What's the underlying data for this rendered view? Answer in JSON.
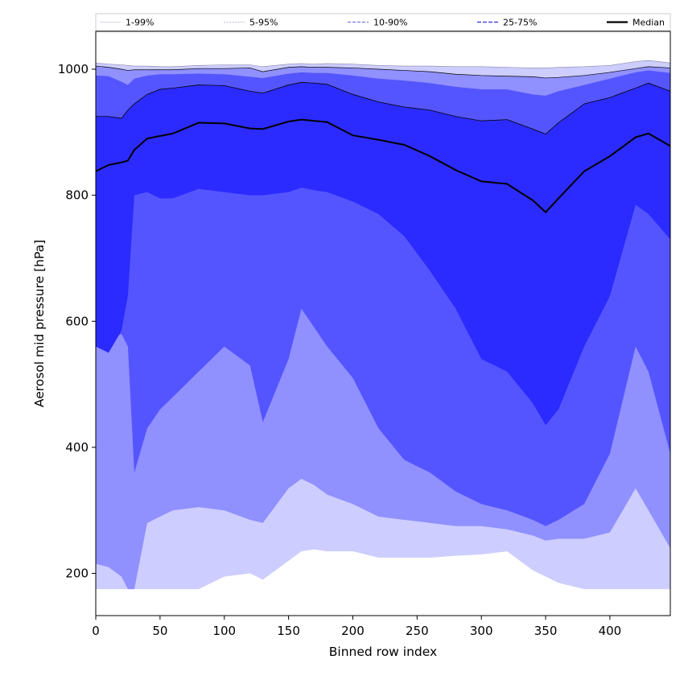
{
  "chart_data": {
    "type": "area",
    "title": "",
    "xlabel": "Binned row index",
    "ylabel": "Aerosol mid pressure [hPa]",
    "xlim": [
      0,
      447
    ],
    "ylim": [
      133,
      1060
    ],
    "x_ticks": [
      0,
      50,
      100,
      150,
      200,
      250,
      300,
      350,
      400
    ],
    "y_ticks": [
      200,
      400,
      600,
      800,
      1000
    ],
    "grid": false,
    "legend_placement": "top, spanning full width",
    "colors": {
      "band_1_99": "#cdcdff",
      "band_5_95": "#9090ff",
      "band_10_90": "#5555ff",
      "band_25_75": "#2b2bff",
      "median": "#000000"
    },
    "x": [
      0,
      10,
      20,
      25,
      30,
      40,
      50,
      60,
      80,
      100,
      120,
      130,
      150,
      160,
      170,
      180,
      200,
      220,
      240,
      260,
      280,
      300,
      320,
      340,
      350,
      360,
      380,
      400,
      420,
      430,
      447
    ],
    "series": [
      {
        "name": "1-99%",
        "lower": [
          175,
          175,
          175,
          175,
          175,
          175,
          175,
          175,
          175,
          195,
          200,
          190,
          220,
          235,
          238,
          235,
          235,
          225,
          225,
          225,
          228,
          230,
          235,
          205,
          195,
          185,
          175,
          175,
          175,
          175,
          175
        ],
        "upper": [
          1010,
          1008,
          1007,
          1006,
          1005,
          1005,
          1004,
          1004,
          1006,
          1007,
          1007,
          1004,
          1008,
          1009,
          1008,
          1009,
          1008,
          1006,
          1005,
          1005,
          1004,
          1004,
          1003,
          1002,
          1002,
          1003,
          1004,
          1006,
          1012,
          1014,
          1010
        ]
      },
      {
        "name": "5-95%",
        "lower": [
          215,
          210,
          195,
          175,
          175,
          280,
          290,
          300,
          305,
          300,
          285,
          280,
          335,
          350,
          340,
          325,
          310,
          290,
          285,
          280,
          275,
          275,
          270,
          260,
          252,
          255,
          255,
          265,
          335,
          300,
          240
        ],
        "upper": [
          1005,
          1003,
          1000,
          998,
          999,
          999,
          999,
          999,
          1001,
          1001,
          1002,
          996,
          1003,
          1004,
          1003,
          1003,
          1002,
          1000,
          998,
          996,
          992,
          990,
          989,
          988,
          986,
          987,
          990,
          995,
          1001,
          1004,
          1002
        ]
      },
      {
        "name": "10-90%",
        "lower": [
          565,
          570,
          580,
          560,
          360,
          430,
          460,
          480,
          520,
          560,
          530,
          440,
          540,
          620,
          590,
          560,
          510,
          430,
          380,
          360,
          330,
          310,
          300,
          285,
          275,
          285,
          310,
          390,
          560,
          520,
          390
        ]
      },
      {
        "name": "25-75%",
        "lower": [
          560,
          550,
          585,
          640,
          800,
          805,
          795,
          795,
          810,
          805,
          800,
          800,
          805,
          812,
          808,
          805,
          790,
          770,
          735,
          680,
          620,
          540,
          520,
          470,
          435,
          460,
          560,
          640,
          785,
          770,
          730
        ],
        "upper": [
          925,
          925,
          922,
          935,
          945,
          960,
          968,
          970,
          975,
          974,
          965,
          962,
          975,
          979,
          978,
          976,
          960,
          948,
          940,
          935,
          925,
          918,
          920,
          905,
          897,
          915,
          945,
          955,
          970,
          978,
          965
        ]
      },
      {
        "name": "Median",
        "values": [
          838,
          848,
          852,
          855,
          872,
          890,
          894,
          898,
          915,
          914,
          906,
          905,
          917,
          920,
          918,
          916,
          895,
          888,
          880,
          862,
          840,
          822,
          818,
          792,
          773,
          795,
          838,
          862,
          892,
          898,
          878
        ]
      }
    ],
    "band_10_90_upper": [
      990,
      989,
      980,
      975,
      985,
      990,
      992,
      992,
      993,
      992,
      988,
      986,
      993,
      995,
      994,
      994,
      990,
      985,
      982,
      978,
      972,
      968,
      968,
      960,
      958,
      965,
      975,
      985,
      995,
      998,
      994
    ]
  }
}
